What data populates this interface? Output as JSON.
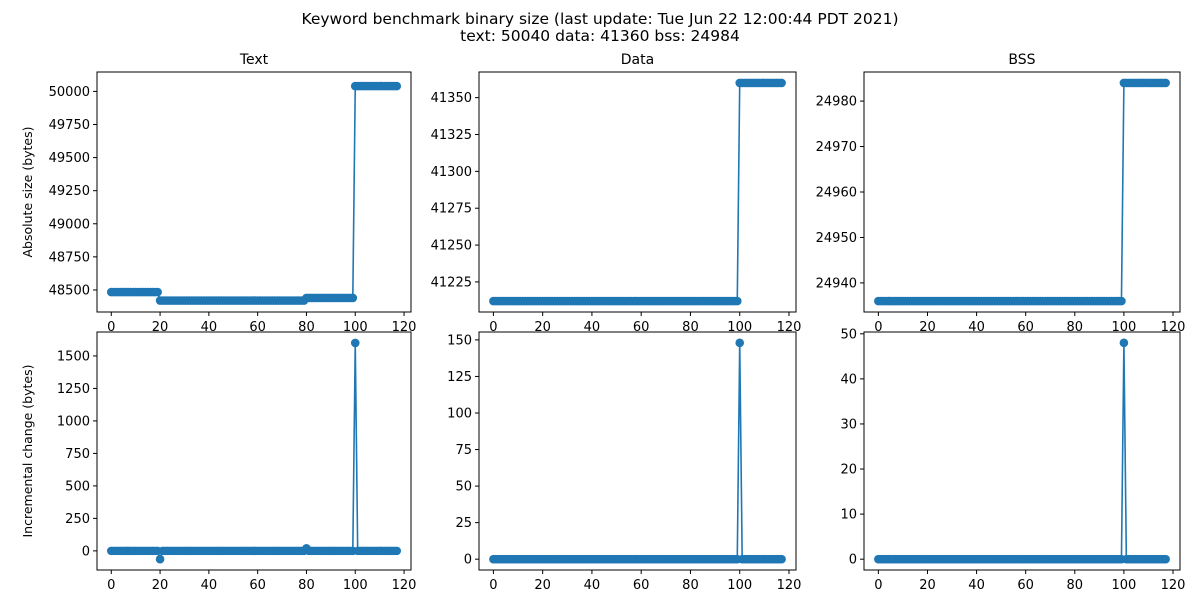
{
  "figure": {
    "title_line1": "Keyword benchmark binary size (last update: Tue Jun 22 12:00:44 PDT 2021)",
    "title_line2": "text: 50040 data: 41360 bss: 24984"
  },
  "colors": {
    "series": "#1f77b4"
  },
  "chart_data": [
    {
      "id": "text_abs",
      "type": "line",
      "title": "Text",
      "ylabel": "Absolute size (bytes)",
      "x_range": [
        0,
        117
      ],
      "xlim": [
        -5.85,
        122.85
      ],
      "ylim": [
        48333.5,
        50146.5
      ],
      "xticks": [
        0,
        20,
        40,
        60,
        80,
        100,
        120
      ],
      "yticks": [
        48500,
        48750,
        49000,
        49250,
        49500,
        49750,
        50000
      ],
      "segments": [
        {
          "from": 0,
          "to": 19,
          "value": 48484
        },
        {
          "from": 20,
          "to": 79,
          "value": 48420
        },
        {
          "from": 80,
          "to": 99,
          "value": 48440
        },
        {
          "from": 100,
          "to": 117,
          "value": 50040
        }
      ],
      "markers": true,
      "grid": false,
      "legend": "none"
    },
    {
      "id": "data_abs",
      "type": "line",
      "title": "Data",
      "ylabel": "",
      "x_range": [
        0,
        117
      ],
      "xlim": [
        -5.85,
        122.85
      ],
      "ylim": [
        41204.6,
        41367.4
      ],
      "xticks": [
        0,
        20,
        40,
        60,
        80,
        100,
        120
      ],
      "yticks": [
        41225,
        41250,
        41275,
        41300,
        41325,
        41350
      ],
      "segments": [
        {
          "from": 0,
          "to": 99,
          "value": 41212
        },
        {
          "from": 100,
          "to": 117,
          "value": 41360
        }
      ],
      "markers": true,
      "grid": false,
      "legend": "none"
    },
    {
      "id": "bss_abs",
      "type": "line",
      "title": "BSS",
      "ylabel": "",
      "x_range": [
        0,
        117
      ],
      "xlim": [
        -5.85,
        122.85
      ],
      "ylim": [
        24933.6,
        24986.4
      ],
      "xticks": [
        0,
        20,
        40,
        60,
        80,
        100,
        120
      ],
      "yticks": [
        24940,
        24950,
        24960,
        24970,
        24980
      ],
      "segments": [
        {
          "from": 0,
          "to": 99,
          "value": 24936
        },
        {
          "from": 100,
          "to": 117,
          "value": 24984
        }
      ],
      "markers": true,
      "grid": false,
      "legend": "none"
    },
    {
      "id": "text_inc",
      "type": "line",
      "title": "",
      "ylabel": "Incremental change (bytes)",
      "x_range": [
        0,
        117
      ],
      "xlim": [
        -5.85,
        122.85
      ],
      "ylim": [
        -147.2,
        1684.2
      ],
      "xticks": [
        0,
        20,
        40,
        60,
        80,
        100,
        120
      ],
      "yticks": [
        0,
        250,
        500,
        750,
        1000,
        1250,
        1500
      ],
      "baseline": 0,
      "spikes": [
        {
          "x": 20,
          "value": -64
        },
        {
          "x": 80,
          "value": 20
        },
        {
          "x": 100,
          "value": 1600
        }
      ],
      "markers": true,
      "grid": false,
      "legend": "none"
    },
    {
      "id": "data_inc",
      "type": "line",
      "title": "",
      "ylabel": "",
      "x_range": [
        0,
        117
      ],
      "xlim": [
        -5.85,
        122.85
      ],
      "ylim": [
        -7.4,
        155.4
      ],
      "xticks": [
        0,
        20,
        40,
        60,
        80,
        100,
        120
      ],
      "yticks": [
        0,
        25,
        50,
        75,
        100,
        125,
        150
      ],
      "baseline": 0,
      "spikes": [
        {
          "x": 100,
          "value": 148
        }
      ],
      "markers": true,
      "grid": false,
      "legend": "none"
    },
    {
      "id": "bss_inc",
      "type": "line",
      "title": "",
      "ylabel": "",
      "x_range": [
        0,
        117
      ],
      "xlim": [
        -5.85,
        122.85
      ],
      "ylim": [
        -2.4,
        50.4
      ],
      "xticks": [
        0,
        20,
        40,
        60,
        80,
        100,
        120
      ],
      "yticks": [
        0,
        10,
        20,
        30,
        40,
        50
      ],
      "baseline": 0,
      "spikes": [
        {
          "x": 100,
          "value": 48
        }
      ],
      "markers": true,
      "grid": false,
      "legend": "none"
    }
  ]
}
